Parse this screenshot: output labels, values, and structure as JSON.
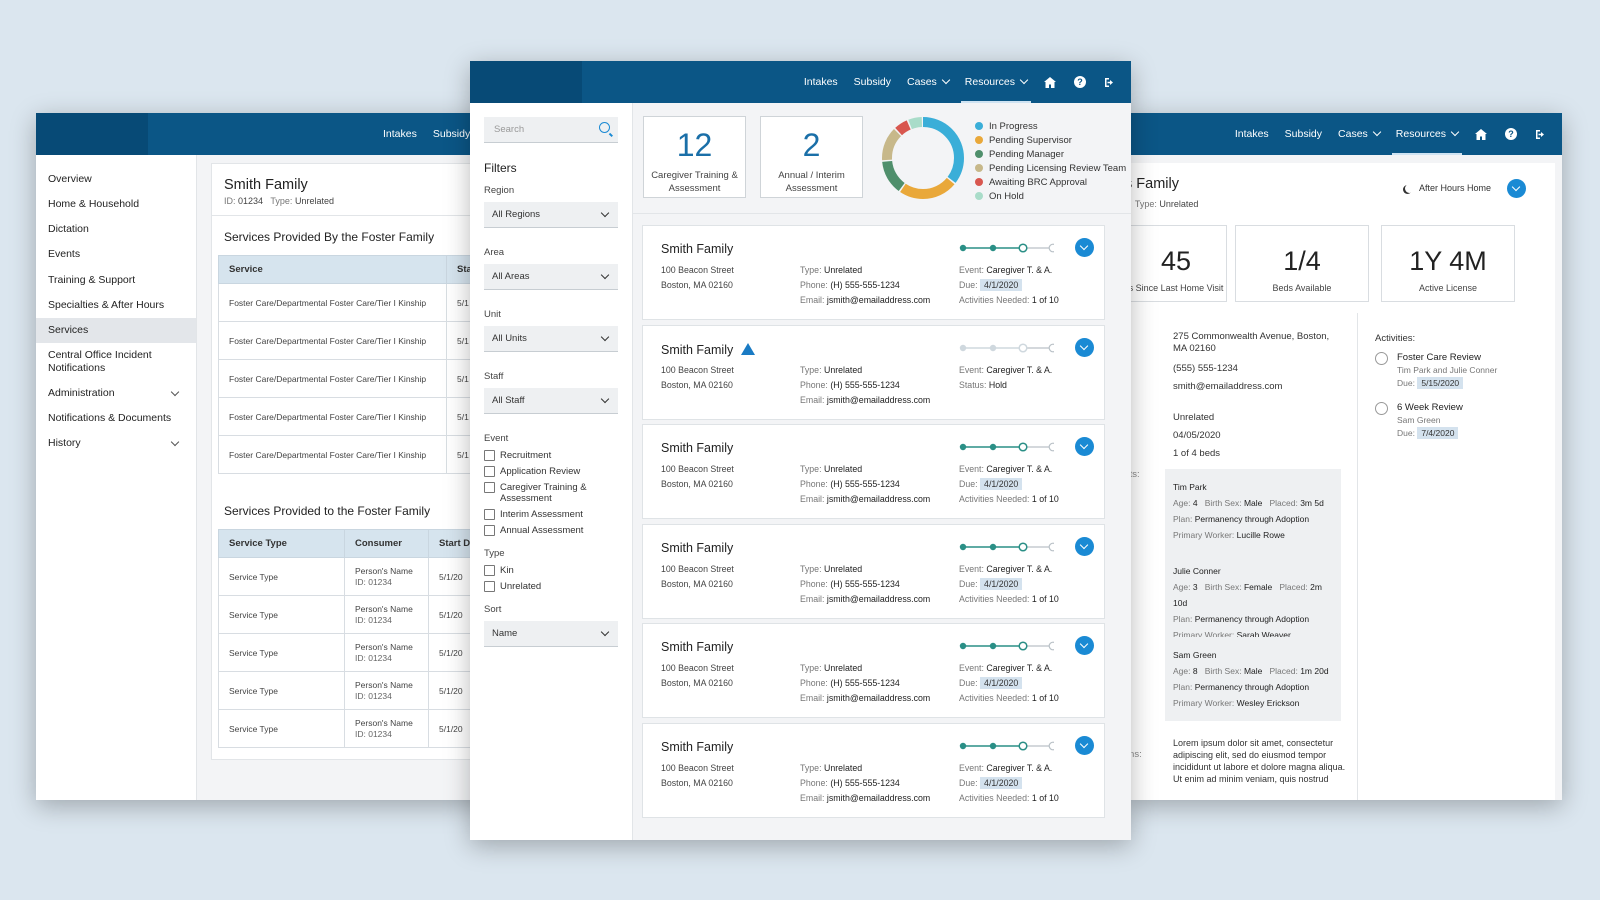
{
  "nav": {
    "intakes": "Intakes",
    "subsidy": "Subsidy",
    "cases": "Cases",
    "resources": "Resources"
  },
  "left_window": {
    "sidebar": [
      {
        "label": "Overview",
        "chevron": false
      },
      {
        "label": "Home & Household",
        "chevron": false
      },
      {
        "label": "Dictation",
        "chevron": false
      },
      {
        "label": "Events",
        "chevron": false
      },
      {
        "label": "Training & Support",
        "chevron": false
      },
      {
        "label": "Specialties & After Hours",
        "chevron": false
      },
      {
        "label": "Services",
        "chevron": false,
        "active": true
      },
      {
        "label": "Central Office Incident Notifications",
        "chevron": false
      },
      {
        "label": "Administration",
        "chevron": true
      },
      {
        "label": "Notifications & Documents",
        "chevron": false
      },
      {
        "label": "History",
        "chevron": true
      }
    ],
    "family_name": "Smith Family",
    "id_label": "ID:",
    "id_value": "01234",
    "type_label": "Type:",
    "type_value": "Unrelated",
    "section1_title": "Services Provided By the Foster Family",
    "table1": {
      "headers": [
        "Service",
        "Sta"
      ],
      "rows": [
        [
          "Foster Care/Departmental Foster Care/Tier I Kinship",
          "5/1"
        ],
        [
          "Foster Care/Departmental Foster Care/Tier I Kinship",
          "5/1"
        ],
        [
          "Foster Care/Departmental Foster Care/Tier I Kinship",
          "5/1"
        ],
        [
          "Foster Care/Departmental Foster Care/Tier I Kinship",
          "5/1"
        ],
        [
          "Foster Care/Departmental Foster Care/Tier I Kinship",
          "5/1"
        ]
      ]
    },
    "section2_title": "Services Provided to the Foster Family",
    "table2": {
      "headers": [
        "Service Type",
        "Consumer",
        "Start D"
      ],
      "rows": [
        [
          "Service Type",
          "Person's Name",
          "ID: 01234",
          "5/1/20"
        ],
        [
          "Service Type",
          "Person's Name",
          "ID: 01234",
          "5/1/20"
        ],
        [
          "Service Type",
          "Person's Name",
          "ID: 01234",
          "5/1/20"
        ],
        [
          "Service Type",
          "Person's Name",
          "ID: 01234",
          "5/1/20"
        ],
        [
          "Service Type",
          "Person's Name",
          "ID: 01234",
          "5/1/20"
        ]
      ]
    }
  },
  "middle_window": {
    "search_placeholder": "Search",
    "filters_title": "Filters",
    "region_label": "Region",
    "region_value": "All Regions",
    "area_label": "Area",
    "area_value": "All Areas",
    "unit_label": "Unit",
    "unit_value": "All Units",
    "staff_label": "Staff",
    "staff_value": "All Staff",
    "event_label": "Event",
    "event_options": [
      "Recruitment",
      "Application Review",
      "Caregiver Training & Assessment",
      "Interim Assessment",
      "Annual Assessment"
    ],
    "type_label": "Type",
    "type_options": [
      "Kin",
      "Unrelated"
    ],
    "sort_label": "Sort",
    "sort_value": "Name",
    "kpis": [
      {
        "value": "12",
        "label": "Caregiver Training & Assessment"
      },
      {
        "value": "2",
        "label": "Annual / Interim Assessment"
      }
    ],
    "status_legend": [
      {
        "label": "In Progress",
        "color": "#3aaed8",
        "share": 0.36
      },
      {
        "label": "Pending Supervisor",
        "color": "#e9a83a",
        "share": 0.24
      },
      {
        "label": "Pending Manager",
        "color": "#4f8f6c",
        "share": 0.14
      },
      {
        "label": "Pending Licensing Review Team",
        "color": "#c7b88a",
        "share": 0.14
      },
      {
        "label": "Awaiting BRC Approval",
        "color": "#d8574f",
        "share": 0.06
      },
      {
        "label": "On Hold",
        "color": "#a9dcc9",
        "share": 0.06
      }
    ],
    "cards": [
      {
        "name": "Smith Family",
        "warning": false,
        "street": "100 Beacon Street",
        "city": "Boston, MA 02160",
        "type_label": "Type:",
        "type": "Unrelated",
        "phone_label": "Phone:",
        "phone": "(H) 555-555-1234",
        "email_label": "Email:",
        "email": "jsmith@emailaddress.com",
        "event_label": "Event:",
        "event": "Caregiver T. & A.",
        "line2_label": "Due:",
        "line2": "4/1/2020",
        "line3_label": "Activities Needed:",
        "line3": "1 of 10",
        "progress_step": 3,
        "progress_steps": 4
      },
      {
        "name": "Smith Family",
        "warning": true,
        "street": "100 Beacon Street",
        "city": "Boston, MA 02160",
        "type_label": "Type:",
        "type": "Unrelated",
        "phone_label": "Phone:",
        "phone": "(H) 555-555-1234",
        "email_label": "Email:",
        "email": "jsmith@emailaddress.com",
        "event_label": "Event:",
        "event": "Caregiver T. & A.",
        "line2_label": "Status:",
        "line2": "Hold",
        "line3_label": "",
        "line3": "",
        "progress_step": 3,
        "progress_steps": 4
      },
      {
        "name": "Smith Family",
        "warning": false,
        "street": "100 Beacon Street",
        "city": "Boston, MA 02160",
        "type_label": "Type:",
        "type": "Unrelated",
        "phone_label": "Phone:",
        "phone": "(H) 555-555-1234",
        "email_label": "Email:",
        "email": "jsmith@emailaddress.com",
        "event_label": "Event:",
        "event": "Caregiver T. & A.",
        "line2_label": "Due:",
        "line2": "4/1/2020",
        "line3_label": "Activities Needed:",
        "line3": "1 of 10",
        "progress_step": 3,
        "progress_steps": 4
      },
      {
        "name": "Smith Family",
        "warning": false,
        "street": "100 Beacon Street",
        "city": "Boston, MA 02160",
        "type_label": "Type:",
        "type": "Unrelated",
        "phone_label": "Phone:",
        "phone": "(H) 555-555-1234",
        "email_label": "Email:",
        "email": "jsmith@emailaddress.com",
        "event_label": "Event:",
        "event": "Caregiver T. & A.",
        "line2_label": "Due:",
        "line2": "4/1/2020",
        "line3_label": "Activities Needed:",
        "line3": "1 of 10",
        "progress_step": 3,
        "progress_steps": 4
      },
      {
        "name": "Smith Family",
        "warning": false,
        "street": "100 Beacon Street",
        "city": "Boston, MA 02160",
        "type_label": "Type:",
        "type": "Unrelated",
        "phone_label": "Phone:",
        "phone": "(H) 555-555-1234",
        "email_label": "Email:",
        "email": "jsmith@emailaddress.com",
        "event_label": "Event:",
        "event": "Caregiver T. & A.",
        "line2_label": "Due:",
        "line2": "4/1/2020",
        "line3_label": "Activities Needed:",
        "line3": "1 of 10",
        "progress_step": 3,
        "progress_steps": 4
      },
      {
        "name": "Smith Family",
        "warning": false,
        "street": "100 Beacon Street",
        "city": "Boston, MA 02160",
        "type_label": "Type:",
        "type": "Unrelated",
        "phone_label": "Phone:",
        "phone": "(H) 555-555-1234",
        "email_label": "Email:",
        "email": "jsmith@emailaddress.com",
        "event_label": "Event:",
        "event": "Caregiver T. & A.",
        "line2_label": "Due:",
        "line2": "4/1/2020",
        "line3_label": "Activities Needed:",
        "line3": "1 of 10",
        "progress_step": 3,
        "progress_steps": 4
      }
    ]
  },
  "right_window": {
    "family_name": "s Family",
    "id_fragment": "5",
    "type_label": "Type:",
    "type_value": "Unrelated",
    "after_hours": "After Hours Home",
    "stats": [
      {
        "value": "45",
        "label": "s Since Last Home Visit"
      },
      {
        "value": "1/4",
        "label": "Beds Available"
      },
      {
        "value": "1Y 4M",
        "label": "Active License"
      }
    ],
    "address": "275 Commonwealth Avenue, Boston, MA 02160",
    "phone": "(555) 555-1234",
    "email": "smith@emailaddress.com",
    "relation": "Unrelated",
    "date": "04/05/2020",
    "beds": "1 of 4 beds",
    "label_fragments": [
      ":",
      "d:",
      "y:",
      "ents:",
      "nt",
      "tions:"
    ],
    "children": [
      {
        "name": "Tim Park",
        "age": "4",
        "sex": "Male",
        "placed": "3m 5d",
        "plan": "Permanency through Adoption",
        "worker": "Lucille Rowe"
      },
      {
        "name": "Julie Conner",
        "age": "3",
        "sex": "Female",
        "placed": "2m 10d",
        "plan": "Permanency through Adoption",
        "worker": "Sarah Weaver"
      },
      {
        "name": "Sam Green",
        "age": "8",
        "sex": "Male",
        "placed": "1m 20d",
        "plan": "Permanency through Adoption",
        "worker": "Wesley Erickson"
      }
    ],
    "child_labels": {
      "age": "Age:",
      "sex": "Birth Sex:",
      "placed": "Placed:",
      "plan": "Plan:",
      "worker": "Primary Worker:"
    },
    "notes": "Lorem ipsum dolor sit amet, consectetur adipiscing elit, sed do eiusmod tempor incididunt ut labore et dolore magna aliqua. Ut enim ad minim veniam, quis nostrud",
    "activities_title": "Activities:",
    "activities": [
      {
        "title": "Foster Care Review",
        "who": "Tim Park and Julie Conner",
        "due_label": "Due:",
        "due": "5/15/2020"
      },
      {
        "title": "6 Week Review",
        "who": "Sam Green",
        "due_label": "Due:",
        "due": "7/4/2020"
      }
    ]
  }
}
